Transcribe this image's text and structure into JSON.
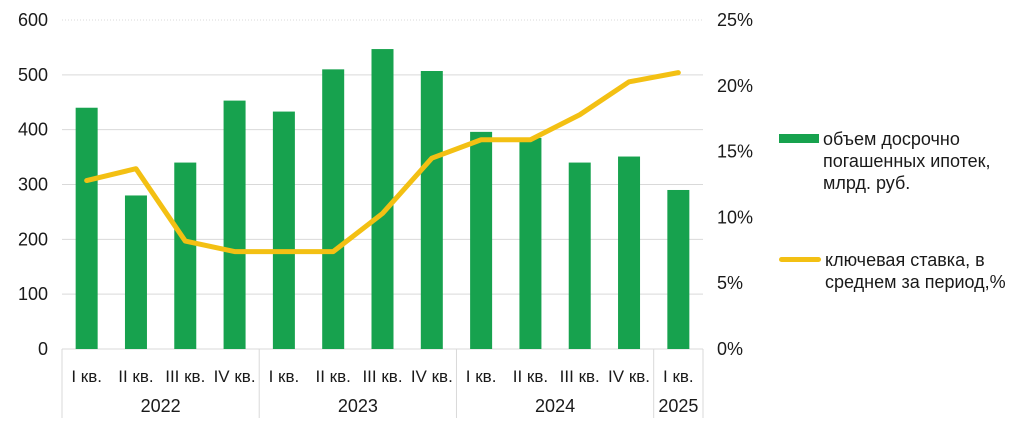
{
  "colors": {
    "bar": "#17A24E",
    "line": "#F3C013",
    "grid": "#D9D9D9",
    "text": "#1a1a1a"
  },
  "chart_data": {
    "type": "combo",
    "title": "",
    "grid": true,
    "legend_position": "right",
    "categories": {
      "quarters": [
        "I кв.",
        "II кв.",
        "III кв.",
        "IV кв.",
        "I кв.",
        "II кв.",
        "III кв.",
        "IV кв.",
        "I кв.",
        "II кв.",
        "III кв.",
        "IV кв.",
        "I кв."
      ],
      "year_groups": [
        {
          "label": "2022",
          "span": 4
        },
        {
          "label": "2023",
          "span": 4
        },
        {
          "label": "2024",
          "span": 4
        },
        {
          "label": "2025",
          "span": 1
        }
      ]
    },
    "axes": {
      "left": {
        "min": 0,
        "max": 600,
        "ticks": [
          {
            "value": 600,
            "label": "600"
          },
          {
            "value": 500,
            "label": "500"
          },
          {
            "value": 400,
            "label": "400"
          },
          {
            "value": 300,
            "label": "300"
          },
          {
            "value": 200,
            "label": "200"
          },
          {
            "value": 100,
            "label": "100"
          },
          {
            "value": 0,
            "label": "0"
          }
        ]
      },
      "right": {
        "min": 0,
        "max": 25,
        "ticks": [
          {
            "value": 25,
            "label": "25%"
          },
          {
            "value": 20,
            "label": "20%"
          },
          {
            "value": 15,
            "label": "15%"
          },
          {
            "value": 10,
            "label": "10%"
          },
          {
            "value": 5,
            "label": "5%"
          },
          {
            "value": 0,
            "label": "0%"
          }
        ]
      }
    },
    "series": [
      {
        "name": "объем досрочно погашенных ипотек, млрд. руб.",
        "type": "bar",
        "axis": "left",
        "color": "#17A24E",
        "values": [
          440,
          280,
          340,
          453,
          433,
          510,
          547,
          507,
          396,
          385,
          340,
          351,
          290
        ]
      },
      {
        "name": "ключевая ставка, в среднем за период,%",
        "type": "line",
        "axis": "right",
        "color": "#F3C013",
        "values": [
          12.8,
          13.7,
          8.2,
          7.4,
          7.4,
          7.4,
          10.3,
          14.5,
          15.9,
          15.9,
          17.8,
          20.3,
          21.0
        ]
      }
    ]
  },
  "legend": {
    "items": [
      {
        "lines": [
          "объем досрочно",
          "погашенных ипотек,",
          "млрд. руб."
        ]
      },
      {
        "lines": [
          "ключевая ставка, в",
          "среднем за период,%"
        ]
      }
    ]
  }
}
